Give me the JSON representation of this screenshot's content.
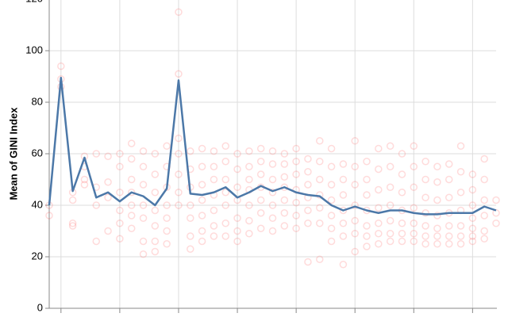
{
  "chart_data": {
    "type": "line",
    "y_label": "Mean of GINI Index",
    "categories": [
      null,
      null,
      null,
      null,
      null,
      null,
      null,
      null,
      null,
      null,
      null,
      null,
      null,
      null,
      null,
      null,
      null,
      null,
      null,
      null,
      null,
      null,
      null,
      null,
      null,
      null,
      null,
      null,
      null,
      null,
      null,
      null,
      null,
      null,
      null,
      null,
      null,
      null,
      null
    ],
    "series": [
      {
        "color": "#4c78a8",
        "values": [
          40,
          89.5,
          45.5,
          58.5,
          43,
          45,
          41.5,
          45,
          43.5,
          40,
          46.5,
          88.5,
          44.5,
          44,
          45,
          47,
          43,
          45,
          47.5,
          45.5,
          47,
          45,
          44,
          43.5,
          40,
          38,
          39.5,
          38,
          37,
          38,
          38,
          37,
          36.5,
          36.5,
          37,
          37,
          37,
          39.5,
          38
        ]
      }
    ],
    "points_color": "#ff4d4d",
    "points": [
      [
        40,
        36
      ],
      [
        94,
        89,
        86
      ],
      [
        45,
        42,
        32,
        33
      ],
      [
        59,
        55,
        50,
        48
      ],
      [
        60,
        47,
        40,
        26
      ],
      [
        59,
        49,
        43,
        30
      ],
      [
        60,
        55,
        45,
        38,
        27,
        33
      ],
      [
        64,
        58,
        50,
        45,
        40,
        36,
        31
      ],
      [
        61,
        55,
        48,
        40,
        35,
        26,
        21
      ],
      [
        60,
        52,
        45,
        38,
        32,
        26,
        22
      ],
      [
        63,
        55,
        47,
        40,
        35,
        30,
        25
      ],
      [
        115,
        91,
        66,
        60,
        52,
        45,
        40
      ],
      [
        61,
        54,
        47,
        40,
        35,
        28,
        23
      ],
      [
        62,
        55,
        48,
        42,
        36,
        30,
        26
      ],
      [
        61,
        55,
        50,
        44,
        38,
        32,
        28
      ],
      [
        63,
        57,
        50,
        45,
        40,
        33,
        28
      ],
      [
        60,
        54,
        47,
        42,
        35,
        30,
        26
      ],
      [
        61,
        55,
        50,
        46,
        40,
        34,
        29
      ],
      [
        62,
        57,
        52,
        47,
        42,
        37,
        31
      ],
      [
        61,
        56,
        50,
        45,
        40,
        35,
        30
      ],
      [
        60,
        56,
        51,
        47,
        42,
        37,
        32
      ],
      [
        62,
        57,
        52,
        46,
        41,
        36,
        31
      ],
      [
        58,
        53,
        48,
        43,
        38,
        33,
        18
      ],
      [
        65,
        57,
        50,
        44,
        39,
        33,
        19
      ],
      [
        62,
        55,
        48,
        42,
        36,
        31,
        26
      ],
      [
        56,
        50,
        44,
        38,
        33,
        28,
        17
      ],
      [
        65,
        55,
        48,
        40,
        34,
        29,
        22
      ],
      [
        57,
        50,
        44,
        38,
        32,
        28,
        24
      ],
      [
        62,
        54,
        46,
        39,
        33,
        29,
        25
      ],
      [
        63,
        55,
        47,
        40,
        34,
        29,
        26
      ],
      [
        60,
        52,
        45,
        38,
        33,
        29,
        26
      ],
      [
        63,
        55,
        47,
        39,
        33,
        29,
        26
      ],
      [
        57,
        50,
        43,
        37,
        32,
        28,
        25
      ],
      [
        55,
        49,
        42,
        36,
        31,
        28,
        25
      ],
      [
        56,
        50,
        43,
        37,
        32,
        28,
        25
      ],
      [
        63,
        53,
        45,
        38,
        32,
        28,
        25
      ],
      [
        52,
        46,
        40,
        35,
        31,
        28,
        26
      ],
      [
        58,
        50,
        42,
        36,
        30,
        27
      ],
      [
        42,
        37,
        33
      ]
    ],
    "ylim": [
      0,
      120
    ],
    "yticks": [
      0,
      20,
      40,
      60,
      80,
      100,
      120
    ],
    "grid": true
  }
}
